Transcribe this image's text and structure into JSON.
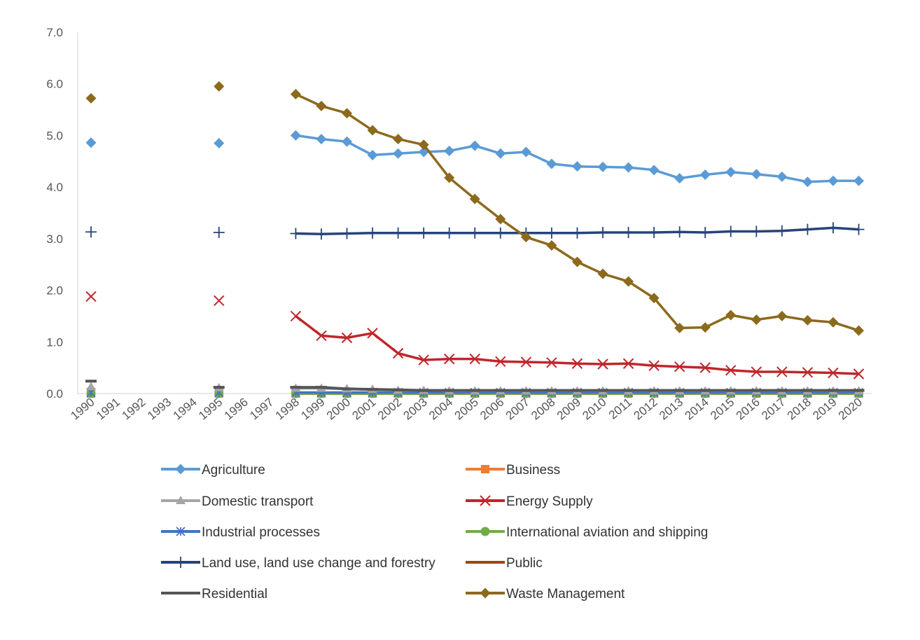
{
  "chart_data": {
    "type": "line",
    "title": "",
    "xlabel": "",
    "ylabel": "",
    "ylim": [
      0,
      7
    ],
    "yticks": [
      "0.0",
      "1.0",
      "2.0",
      "3.0",
      "4.0",
      "5.0",
      "6.0",
      "7.0"
    ],
    "categories": [
      "1990",
      "1991",
      "1992",
      "1993",
      "1994",
      "1995",
      "1996",
      "1997",
      "1998",
      "1999",
      "2000",
      "2001",
      "2002",
      "2003",
      "2004",
      "2005",
      "2006",
      "2007",
      "2008",
      "2009",
      "2010",
      "2011",
      "2012",
      "2013",
      "2014",
      "2015",
      "2016",
      "2017",
      "2018",
      "2019",
      "2020"
    ],
    "grid": false,
    "legend_position": "bottom",
    "series": [
      {
        "name": "Agriculture",
        "color": "#5B9BD5",
        "marker": "diamond",
        "values": [
          4.86,
          null,
          null,
          null,
          null,
          4.85,
          null,
          null,
          5.0,
          4.93,
          4.88,
          4.62,
          4.65,
          4.68,
          4.7,
          4.8,
          4.65,
          4.68,
          4.45,
          4.4,
          4.39,
          4.38,
          4.33,
          4.17,
          4.24,
          4.29,
          4.25,
          4.2,
          4.1,
          4.12,
          4.12
        ]
      },
      {
        "name": "Business",
        "color": "#ED7D31",
        "marker": "square",
        "values": [
          0.0,
          null,
          null,
          null,
          null,
          0.0,
          null,
          null,
          0.0,
          0.0,
          0.0,
          0.0,
          0.0,
          0.0,
          0.0,
          0.0,
          0.0,
          0.0,
          0.0,
          0.0,
          0.0,
          0.0,
          0.0,
          0.0,
          0.0,
          0.0,
          0.0,
          0.0,
          0.0,
          0.0,
          0.0
        ]
      },
      {
        "name": "Domestic transport",
        "color": "#A5A5A5",
        "marker": "triangle",
        "values": [
          0.13,
          null,
          null,
          null,
          null,
          0.11,
          null,
          null,
          0.1,
          0.1,
          0.09,
          0.08,
          0.06,
          0.06,
          0.05,
          0.05,
          0.05,
          0.05,
          0.05,
          0.05,
          0.05,
          0.05,
          0.05,
          0.05,
          0.05,
          0.05,
          0.05,
          0.05,
          0.05,
          0.05,
          0.05
        ]
      },
      {
        "name": "Energy Supply",
        "color": "#C0262B",
        "marker": "x",
        "values": [
          1.88,
          null,
          null,
          null,
          null,
          1.8,
          null,
          null,
          1.5,
          1.12,
          1.08,
          1.17,
          0.78,
          0.65,
          0.67,
          0.67,
          0.62,
          0.61,
          0.6,
          0.58,
          0.57,
          0.58,
          0.54,
          0.52,
          0.5,
          0.45,
          0.42,
          0.42,
          0.41,
          0.4,
          0.38
        ]
      },
      {
        "name": "Industrial processes",
        "color": "#4472C4",
        "marker": "star",
        "values": [
          0.02,
          null,
          null,
          null,
          null,
          0.02,
          null,
          null,
          0.02,
          0.02,
          0.02,
          0.02,
          0.02,
          0.02,
          0.02,
          0.02,
          0.02,
          0.02,
          0.02,
          0.02,
          0.02,
          0.02,
          0.02,
          0.02,
          0.02,
          0.02,
          0.02,
          0.02,
          0.02,
          0.02,
          0.02
        ]
      },
      {
        "name": "International aviation and shipping",
        "color": "#70AD47",
        "marker": "circle",
        "values": [
          0.0,
          null,
          null,
          null,
          null,
          0.0,
          null,
          null,
          0.0,
          0.0,
          0.0,
          0.0,
          0.0,
          0.0,
          0.0,
          0.0,
          0.0,
          0.0,
          0.0,
          0.0,
          0.0,
          0.0,
          0.0,
          0.0,
          0.0,
          0.0,
          0.0,
          0.0,
          0.0,
          0.0,
          0.0
        ]
      },
      {
        "name": "Land use, land use change and forestry",
        "color": "#264478",
        "marker": "plus",
        "values": [
          3.13,
          null,
          null,
          null,
          null,
          3.12,
          null,
          null,
          3.1,
          3.09,
          3.1,
          3.11,
          3.11,
          3.11,
          3.11,
          3.11,
          3.11,
          3.11,
          3.11,
          3.11,
          3.12,
          3.12,
          3.12,
          3.13,
          3.12,
          3.14,
          3.14,
          3.15,
          3.18,
          3.21,
          3.18
        ]
      },
      {
        "name": "Public",
        "color": "#9E480E",
        "marker": "none",
        "values": [
          0.0,
          null,
          null,
          null,
          null,
          0.0,
          null,
          null,
          0.0,
          0.0,
          0.0,
          0.0,
          0.0,
          0.0,
          0.0,
          0.0,
          0.0,
          0.0,
          0.0,
          0.0,
          0.0,
          0.0,
          0.0,
          0.0,
          0.0,
          0.0,
          0.0,
          0.0,
          0.0,
          0.0,
          0.0
        ]
      },
      {
        "name": "Residential",
        "color": "#555555",
        "marker": "dash",
        "values": [
          0.24,
          null,
          null,
          null,
          null,
          0.12,
          null,
          null,
          0.12,
          0.12,
          0.09,
          0.08,
          0.07,
          0.06,
          0.06,
          0.06,
          0.06,
          0.06,
          0.06,
          0.06,
          0.06,
          0.06,
          0.06,
          0.06,
          0.06,
          0.06,
          0.06,
          0.06,
          0.06,
          0.06,
          0.06
        ]
      },
      {
        "name": "Waste Management",
        "color": "#8C6A1C",
        "marker": "diamond",
        "values": [
          5.72,
          null,
          null,
          null,
          null,
          5.95,
          null,
          null,
          5.8,
          5.57,
          5.43,
          5.1,
          4.93,
          4.82,
          4.18,
          3.77,
          3.38,
          3.03,
          2.87,
          2.55,
          2.32,
          2.17,
          1.85,
          1.27,
          1.28,
          1.52,
          1.43,
          1.5,
          1.42,
          1.38,
          1.22
        ]
      }
    ]
  }
}
